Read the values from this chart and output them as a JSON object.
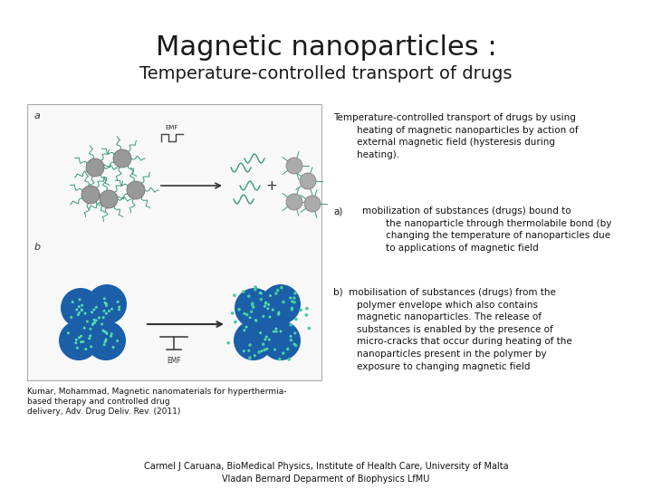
{
  "title": "Magnetic nanoparticles :",
  "subtitle": "Temperature-controlled transport of drugs",
  "right_text_intro": "Temperature-controlled transport of drugs by using\n        heating of magnetic nanoparticles by action of\n        external magnetic field (hysteresis during\n        heating).",
  "right_text_a_label": "a)",
  "right_text_a": "mobilization of substances (drugs) bound to\n        the nanoparticle through thermolabile bond (by\n        changing the temperature of nanoparticles due\n        to applications of magnetic field",
  "right_text_b": "b)  mobilisation of substances (drugs) from the\n        polymer envelope which also contains\n        magnetic nanoparticles. The release of\n        substances is enabled by the presence of\n        micro-cracks that occur during heating of the\n        nanoparticles present in the polymer by\n        exposure to changing magnetic field",
  "citation": "Kumar, Mohammad, Magnetic nanomaterials for hyperthermia-\nbased therapy and controlled drug\ndelivery, Adv. Drug Deliv. Rev. (2011)",
  "footer1": "Carmel J Caruana, BioMedical Physics, Institute of Health Care, University of Malta",
  "footer2": "Vladan Bernard Deparment of Biophysics LfMU",
  "bg_color": "#ffffff",
  "title_fontsize": 22,
  "subtitle_fontsize": 14,
  "body_fontsize": 7.5,
  "citation_fontsize": 6.5,
  "footer_fontsize": 7,
  "title_color": "#1a1a1a",
  "body_color": "#111111"
}
